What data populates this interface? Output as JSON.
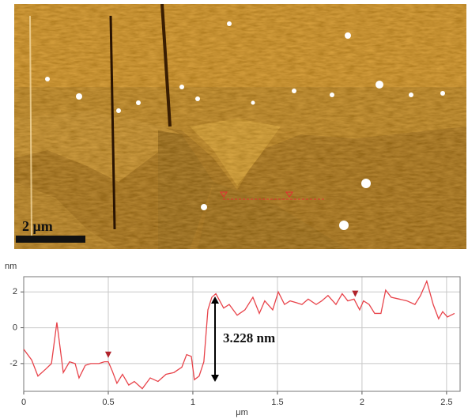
{
  "image": {
    "scale_bar": "2 μm"
  },
  "chart_data": {
    "type": "line",
    "y_label": "nm",
    "x_label": "μm",
    "x": [
      0,
      0.047,
      0.084,
      0.131,
      0.164,
      0.196,
      0.234,
      0.271,
      0.304,
      0.327,
      0.364,
      0.397,
      0.444,
      0.477,
      0.5,
      0.523,
      0.551,
      0.584,
      0.621,
      0.654,
      0.701,
      0.748,
      0.794,
      0.841,
      0.888,
      0.935,
      0.963,
      0.991,
      1.009,
      1.037,
      1.065,
      1.089,
      1.112,
      1.136,
      1.159,
      1.182,
      1.215,
      1.262,
      1.308,
      1.355,
      1.393,
      1.425,
      1.472,
      1.505,
      1.542,
      1.575,
      1.612,
      1.645,
      1.682,
      1.729,
      1.762,
      1.799,
      1.846,
      1.883,
      1.916,
      1.953,
      1.986,
      2.009,
      2.042,
      2.075,
      2.112,
      2.14,
      2.173,
      2.22,
      2.266,
      2.313,
      2.346,
      2.383,
      2.421,
      2.453,
      2.477,
      2.505,
      2.547
    ],
    "values": [
      -1.2,
      -1.8,
      -2.7,
      -2.3,
      -2.0,
      0.3,
      -2.5,
      -1.9,
      -2.0,
      -2.8,
      -2.1,
      -2.0,
      -2.0,
      -1.9,
      -1.9,
      -2.4,
      -3.1,
      -2.6,
      -3.2,
      -3.0,
      -3.4,
      -2.8,
      -3.0,
      -2.6,
      -2.5,
      -2.2,
      -1.5,
      -1.6,
      -2.9,
      -2.7,
      -1.9,
      1.0,
      1.7,
      1.9,
      1.5,
      1.1,
      1.3,
      0.7,
      1.0,
      1.7,
      0.8,
      1.5,
      1.0,
      2.0,
      1.3,
      1.5,
      1.4,
      1.3,
      1.6,
      1.3,
      1.5,
      1.8,
      1.3,
      1.9,
      1.5,
      1.6,
      1.0,
      1.5,
      1.3,
      0.8,
      0.8,
      2.1,
      1.7,
      1.6,
      1.5,
      1.3,
      1.8,
      2.6,
      1.3,
      0.5,
      0.9,
      0.6,
      0.8
    ],
    "color": "#e8434a",
    "markers": {
      "x": [
        0.5,
        1.96
      ],
      "values": [
        -1.55,
        1.85
      ],
      "color": "#b0222a"
    },
    "annotation": "3.228 nm",
    "xlim": [
      0,
      2.58
    ],
    "xticks": [
      0,
      0.5,
      1,
      1.5,
      2,
      2.5
    ],
    "ylim": [
      -3.55,
      2.85
    ],
    "yticks": [
      -2,
      0,
      2
    ],
    "grid": true
  }
}
